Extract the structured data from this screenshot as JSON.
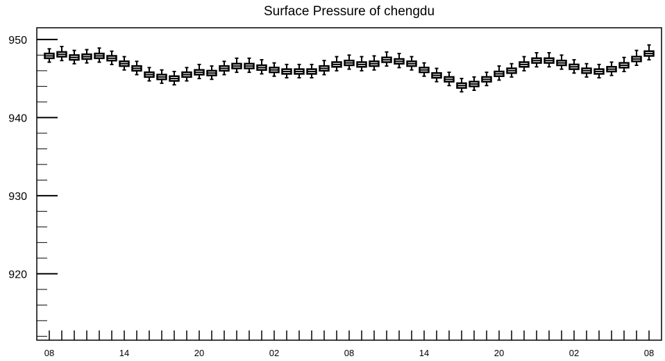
{
  "chart_data": {
    "type": "box",
    "title": "Surface Pressure of chengdu",
    "xlabel": "",
    "ylabel": "",
    "ylim": [
      911.5,
      951.5
    ],
    "y_ticks": [
      920,
      930,
      940,
      950
    ],
    "y_tick_labels": [
      "920",
      "930",
      "940",
      "950"
    ],
    "x_tick_labels": [
      "08",
      "14",
      "20",
      "02",
      "08",
      "14",
      "20",
      "02",
      "08"
    ],
    "x_label_every": 6,
    "grid": false,
    "legend": "none",
    "line_color": "#000000",
    "box_fill": "#ffffff",
    "series": [
      {
        "medians": [
          947.9,
          948.1,
          947.7,
          947.8,
          947.9,
          947.6,
          946.9,
          946.3,
          945.5,
          945.2,
          945.0,
          945.5,
          945.8,
          945.7,
          946.3,
          946.6,
          946.6,
          946.4,
          946.1,
          945.9,
          945.9,
          945.9,
          946.3,
          946.8,
          947.0,
          946.8,
          946.9,
          947.4,
          947.2,
          946.9,
          946.1,
          945.4,
          944.9,
          944.1,
          944.3,
          944.9,
          945.6,
          946.0,
          946.8,
          947.3,
          947.3,
          947.0,
          946.5,
          946.0,
          945.9,
          946.2,
          946.7,
          947.5,
          948.2
        ],
        "q1": [
          947.6,
          947.8,
          947.4,
          947.5,
          947.6,
          947.3,
          946.6,
          946.0,
          945.2,
          944.9,
          944.7,
          945.2,
          945.5,
          945.4,
          946.0,
          946.3,
          946.3,
          946.1,
          945.8,
          945.6,
          945.6,
          945.6,
          946.0,
          946.5,
          946.7,
          946.5,
          946.6,
          947.1,
          946.9,
          946.6,
          945.8,
          945.1,
          944.6,
          943.8,
          944.0,
          944.6,
          945.3,
          945.7,
          946.5,
          947.0,
          947.0,
          946.7,
          946.2,
          945.7,
          945.6,
          945.9,
          946.4,
          947.2,
          947.9
        ],
        "q3": [
          948.2,
          948.4,
          948.0,
          948.1,
          948.2,
          947.9,
          947.2,
          946.6,
          945.8,
          945.5,
          945.3,
          945.8,
          946.1,
          946.0,
          946.6,
          946.9,
          946.9,
          946.7,
          946.4,
          946.2,
          946.2,
          946.2,
          946.6,
          947.1,
          947.3,
          947.1,
          947.2,
          947.7,
          947.5,
          947.2,
          946.4,
          945.7,
          945.2,
          944.4,
          944.6,
          945.2,
          945.9,
          946.3,
          947.1,
          947.6,
          947.6,
          947.3,
          946.8,
          946.3,
          946.2,
          946.5,
          947.0,
          947.8,
          948.5
        ],
        "whisker_low": [
          947.1,
          947.3,
          946.9,
          947.0,
          947.1,
          946.8,
          946.1,
          945.5,
          944.7,
          944.4,
          944.2,
          944.7,
          945.0,
          944.9,
          945.5,
          945.8,
          945.8,
          945.6,
          945.3,
          945.1,
          945.1,
          945.1,
          945.5,
          946.0,
          946.2,
          946.0,
          946.1,
          946.6,
          946.4,
          946.1,
          945.3,
          944.6,
          944.1,
          943.3,
          943.5,
          944.1,
          944.8,
          945.2,
          946.0,
          946.5,
          946.5,
          946.2,
          945.7,
          945.2,
          945.1,
          945.4,
          945.9,
          946.7,
          947.4
        ],
        "whisker_high": [
          948.8,
          949.1,
          948.6,
          948.7,
          948.9,
          948.5,
          947.8,
          947.2,
          946.4,
          946.1,
          945.9,
          946.4,
          946.8,
          946.6,
          947.2,
          947.6,
          947.6,
          947.4,
          947.0,
          946.8,
          946.8,
          946.8,
          947.3,
          947.8,
          948.0,
          947.8,
          947.9,
          948.4,
          948.2,
          947.8,
          947.0,
          946.3,
          945.8,
          945.0,
          945.2,
          945.8,
          946.6,
          946.9,
          947.8,
          948.3,
          948.3,
          948.0,
          947.4,
          946.9,
          946.8,
          947.1,
          947.7,
          948.6,
          949.3
        ]
      }
    ]
  }
}
